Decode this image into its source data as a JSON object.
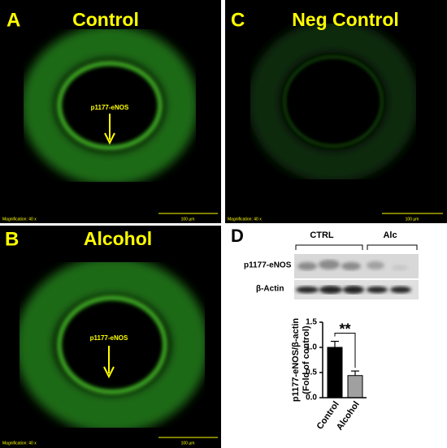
{
  "panels": [
    {
      "letter": "A",
      "title": "Control",
      "arrow_label": "p1177-eNOS",
      "magnification": "Magnification: 40 x",
      "scale_bar": "100 µm"
    },
    {
      "letter": "C",
      "title": "Neg Control",
      "magnification": "Magnification: 40 x",
      "scale_bar": "100 µm"
    },
    {
      "letter": "B",
      "title": "Alcohol",
      "arrow_label": "p1177-eNOS",
      "magnification": "Magnification: 40 x",
      "scale_bar": "100 µm"
    }
  ],
  "blot": {
    "letter": "D",
    "groups": [
      "CTRL",
      "Alc"
    ],
    "rows": [
      "p1177-eNOS",
      "β-Actin"
    ]
  },
  "chart_data": {
    "type": "bar",
    "ylabel": [
      "p1177-eNOS/β-actin",
      "(Fold of control)"
    ],
    "categories": [
      "Control",
      "Alcohol"
    ],
    "values": [
      1.0,
      0.44
    ],
    "errors": [
      0.12,
      0.09
    ],
    "colors": [
      "#000000",
      "#a0a0a0"
    ],
    "ylim": [
      0,
      1.5
    ],
    "yticks": [
      {
        "value": 0,
        "label": "0.0"
      },
      {
        "value": 0.5,
        "label": "0.5"
      },
      {
        "value": 1,
        "label": "1.0"
      },
      {
        "value": 1.5,
        "label": "1.5"
      }
    ],
    "annotation": "**"
  }
}
